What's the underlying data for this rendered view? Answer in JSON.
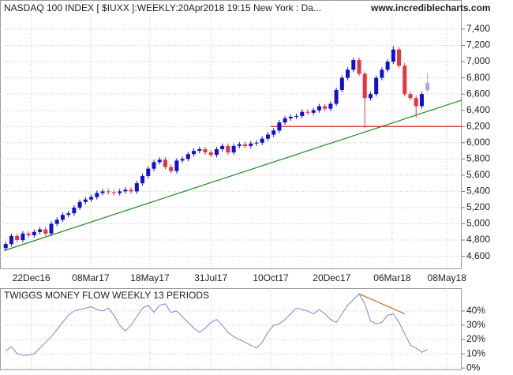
{
  "chart_data": [
    {
      "type": "candlestick",
      "title": "NASDAQ 100 INDEX [ $IUXX ]:WEEKLY:20Apr2018 19:15 New York : Da...",
      "source": "www.incrediblecharts.com",
      "open": [
        4700,
        4750,
        4850,
        4800,
        4880,
        4860,
        4900,
        4930,
        4880,
        5000,
        5050,
        5110,
        5130,
        5200,
        5270,
        5300,
        5330,
        5380,
        5400,
        5390,
        5380,
        5400,
        5420,
        5400,
        5500,
        5590,
        5680,
        5760,
        5790,
        5700,
        5650,
        5780,
        5800,
        5860,
        5900,
        5920,
        5880,
        5850,
        5920,
        5960,
        5880,
        5960,
        5980,
        5960,
        5990,
        6000,
        6050,
        6100,
        6150,
        6250,
        6300,
        6320,
        6330,
        6380,
        6370,
        6400,
        6450,
        6420,
        6480,
        6650,
        6800,
        6900,
        7020,
        6850,
        6550,
        6600,
        6800,
        6900,
        7000,
        7150,
        6950,
        6600,
        6550,
        6450,
        6650
      ],
      "high": [
        4780,
        4880,
        4880,
        4910,
        4910,
        4930,
        4960,
        4960,
        5030,
        5080,
        5140,
        5160,
        5230,
        5300,
        5330,
        5360,
        5410,
        5430,
        5430,
        5420,
        5430,
        5450,
        5450,
        5530,
        5620,
        5710,
        5790,
        5820,
        5820,
        5730,
        5810,
        5830,
        5890,
        5930,
        5950,
        5950,
        5910,
        5950,
        5990,
        5990,
        5990,
        6010,
        6010,
        6020,
        6030,
        6080,
        6130,
        6180,
        6280,
        6330,
        6350,
        6360,
        6410,
        6410,
        6430,
        6480,
        6480,
        6510,
        6680,
        6830,
        6930,
        7050,
        7050,
        6880,
        6630,
        6830,
        6930,
        7030,
        7190,
        7180,
        6980,
        6630,
        6580,
        6630,
        6860
      ],
      "low": [
        4670,
        4720,
        4770,
        4770,
        4830,
        4830,
        4870,
        4850,
        4850,
        4970,
        5020,
        5080,
        5100,
        5170,
        5240,
        5270,
        5300,
        5350,
        5360,
        5350,
        5350,
        5370,
        5370,
        5370,
        5470,
        5560,
        5650,
        5730,
        5670,
        5620,
        5620,
        5750,
        5770,
        5830,
        5870,
        5850,
        5820,
        5820,
        5890,
        5850,
        5850,
        5930,
        5930,
        5930,
        5960,
        5970,
        6020,
        6070,
        6120,
        6220,
        6270,
        6290,
        6300,
        6340,
        6340,
        6370,
        6390,
        6390,
        6450,
        6620,
        6770,
        6870,
        6820,
        6180,
        6520,
        6570,
        6770,
        6870,
        6970,
        6920,
        6570,
        6520,
        6310,
        6420,
        6620
      ],
      "close": [
        4750,
        4850,
        4800,
        4880,
        4860,
        4900,
        4930,
        4880,
        5000,
        5050,
        5110,
        5130,
        5200,
        5270,
        5300,
        5330,
        5380,
        5400,
        5390,
        5380,
        5400,
        5420,
        5400,
        5500,
        5590,
        5680,
        5760,
        5790,
        5700,
        5650,
        5780,
        5800,
        5860,
        5900,
        5920,
        5880,
        5850,
        5920,
        5960,
        5880,
        5960,
        5980,
        5960,
        5990,
        6000,
        6050,
        6100,
        6150,
        6250,
        6300,
        6320,
        6330,
        6380,
        6370,
        6400,
        6450,
        6420,
        6480,
        6650,
        6800,
        6900,
        7020,
        6850,
        6550,
        6600,
        6800,
        6900,
        7000,
        7150,
        6950,
        6600,
        6550,
        6450,
        6600,
        6740
      ],
      "up_color": "#1010d0",
      "down_color": "#e8323c",
      "last_color": "#a8a8ec",
      "xlim": [
        -1,
        80
      ],
      "xticks": [
        {
          "value": 4.5,
          "label": "22Dec16"
        },
        {
          "value": 14.9,
          "label": "08Mar17"
        },
        {
          "value": 25.3,
          "label": "18May17"
        },
        {
          "value": 36,
          "label": "31Jul17"
        },
        {
          "value": 46.5,
          "label": "10Oct17"
        },
        {
          "value": 57.2,
          "label": "20Dec17"
        },
        {
          "value": 67.8,
          "label": "06Mar18"
        },
        {
          "value": 77.4,
          "label": "08May18"
        }
      ],
      "ylim": [
        4450,
        7760
      ],
      "yticks": [
        {
          "value": 4600,
          "label": "4,600"
        },
        {
          "value": 4800,
          "label": "4,800"
        },
        {
          "value": 5000,
          "label": "5,000"
        },
        {
          "value": 5200,
          "label": "5,200"
        },
        {
          "value": 5400,
          "label": "5,400"
        },
        {
          "value": 5600,
          "label": "5,600"
        },
        {
          "value": 5800,
          "label": "5,800"
        },
        {
          "value": 6000,
          "label": "6,000"
        },
        {
          "value": 6200,
          "label": "6,200"
        },
        {
          "value": 6400,
          "label": "6,400"
        },
        {
          "value": 6600,
          "label": "6,600"
        },
        {
          "value": 6800,
          "label": "6,800"
        },
        {
          "value": 7000,
          "label": "7,000"
        },
        {
          "value": 7200,
          "label": "7,200"
        },
        {
          "value": 7400,
          "label": "7,400"
        }
      ],
      "grid": true,
      "lines": [
        {
          "color": "#1a8c1a",
          "x": [
            -0.3,
            80
          ],
          "y": [
            4669,
            6525
          ]
        },
        {
          "color": "#cc2020",
          "x": [
            46.5,
            80
          ],
          "y": [
            6200,
            6200
          ]
        }
      ]
    },
    {
      "type": "line",
      "title": "TWIGGS MONEY FLOW WEEKLY 13 PERIODS",
      "color": "#8080dc",
      "values": [
        12,
        15,
        10,
        9,
        9,
        10,
        14,
        18,
        22,
        27,
        32,
        37,
        40,
        41,
        42,
        43,
        41,
        40,
        42,
        37,
        30,
        26,
        30,
        36,
        42,
        44,
        39,
        44,
        45,
        39,
        40,
        36,
        32,
        28,
        25,
        28,
        32,
        34,
        30,
        25,
        22,
        20,
        18,
        16,
        14,
        18,
        25,
        30,
        31,
        34,
        38,
        42,
        41,
        40,
        38,
        41,
        38,
        34,
        32,
        38,
        44,
        48,
        52,
        45,
        33,
        31,
        32,
        37,
        38,
        32,
        24,
        16,
        14,
        11,
        13
      ],
      "xlim": [
        -1,
        80
      ],
      "xticks": [
        4.5,
        14.9,
        25.3,
        36,
        46.5,
        57.2,
        67.8,
        77.4
      ],
      "ylim": [
        -1,
        56
      ],
      "yticks": [
        {
          "value": 0,
          "label": "0%"
        },
        {
          "value": 10,
          "label": "10%"
        },
        {
          "value": 20,
          "label": "20%"
        },
        {
          "value": 30,
          "label": "30%"
        },
        {
          "value": 40,
          "label": "40%"
        }
      ],
      "grid": true,
      "lines": [
        {
          "color": "#d2691e",
          "x": [
            62,
            70
          ],
          "y": [
            52,
            38
          ]
        }
      ]
    }
  ]
}
